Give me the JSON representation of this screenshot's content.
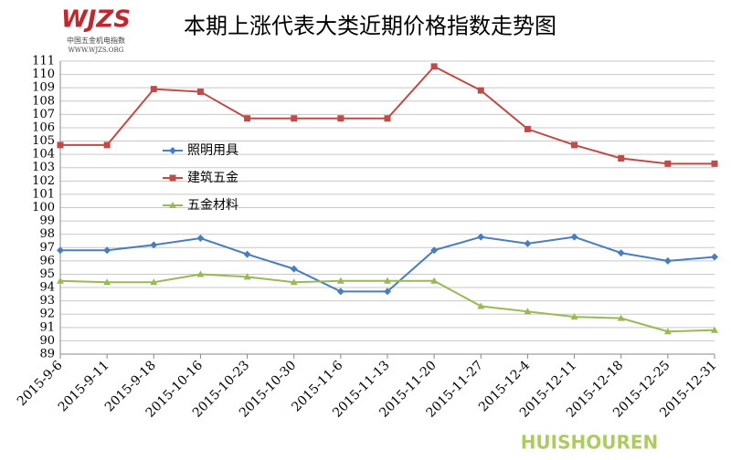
{
  "chart_data": {
    "type": "line",
    "title": "本期上涨代表大类近期价格指数走势图",
    "logo": {
      "mark": "WJZS",
      "name": "中国五金机电指数",
      "url": "WWW.WJZS.ORG"
    },
    "watermark": "HUISHOUREN",
    "categories": [
      "2015-9-6",
      "2015-9-11",
      "2015-9-18",
      "2015-10-16",
      "2015-10-23",
      "2015-10-30",
      "2015-11-6",
      "2015-11-13",
      "2015-11-20",
      "2015-11-27",
      "2015-12-4",
      "2015-12-11",
      "2015-12-18",
      "2015-12-25",
      "2015-12-31"
    ],
    "series": [
      {
        "name": "照明用具",
        "color": "#4a7ebb",
        "marker": "diamond",
        "values": [
          96.8,
          96.8,
          97.2,
          97.7,
          96.5,
          95.4,
          93.7,
          93.7,
          96.8,
          97.8,
          97.3,
          97.8,
          96.6,
          96.0,
          96.3
        ]
      },
      {
        "name": "建筑五金",
        "color": "#be4b48",
        "marker": "square",
        "values": [
          104.7,
          104.7,
          108.9,
          108.7,
          106.7,
          106.7,
          106.7,
          106.7,
          110.6,
          108.8,
          105.9,
          104.7,
          103.7,
          103.3,
          103.3
        ]
      },
      {
        "name": "五金材料",
        "color": "#98b954",
        "marker": "triangle",
        "values": [
          94.5,
          94.4,
          94.4,
          95.0,
          94.8,
          94.4,
          94.5,
          94.5,
          94.5,
          92.6,
          92.2,
          91.8,
          91.7,
          90.7,
          90.8
        ]
      }
    ],
    "ylim": [
      89,
      111
    ],
    "yticks": [
      89,
      90,
      91,
      92,
      93,
      94,
      95,
      96,
      97,
      98,
      99,
      100,
      101,
      102,
      103,
      104,
      105,
      106,
      107,
      108,
      109,
      110,
      111
    ],
    "grid": true
  }
}
